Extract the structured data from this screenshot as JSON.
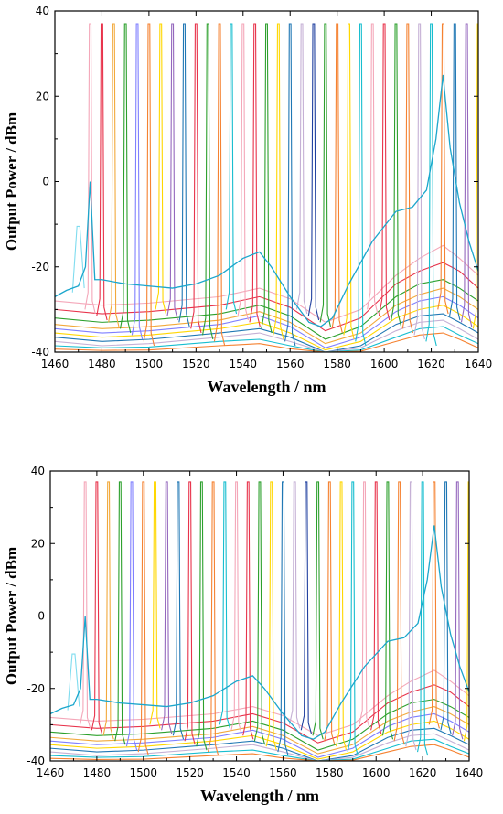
{
  "chart_data": [
    {
      "type": "line",
      "title": "",
      "xlabel": "Wavelength / nm",
      "ylabel": "Output Power / dBm",
      "xlim": [
        1460,
        1640
      ],
      "ylim": [
        -40,
        40
      ],
      "x_ticks": [
        "1460",
        "1480",
        "1500",
        "1520",
        "1540",
        "1560",
        "1580",
        "1600",
        "1620",
        "1640"
      ],
      "y_ticks": [
        "-40",
        "-20",
        "0",
        "20",
        "40"
      ],
      "grid": false,
      "legend": "none",
      "peak_top_dbm": 37,
      "laser_peaks_nm": [
        1475,
        1480,
        1485,
        1490,
        1495,
        1500,
        1505,
        1510,
        1515,
        1520,
        1525,
        1530,
        1535,
        1540,
        1545,
        1550,
        1555,
        1560,
        1565,
        1570,
        1575,
        1580,
        1585,
        1590,
        1595,
        1600,
        1605,
        1610,
        1615,
        1620,
        1625,
        1630,
        1635,
        1640
      ],
      "peak_colors": [
        "#f4a7b9",
        "#e8334b",
        "#f2a93b",
        "#2ca02c",
        "#7f7fff",
        "#f58231",
        "#ffd700",
        "#9467bd",
        "#1f77b4",
        "#e8334b",
        "#2ca02c",
        "#f58231",
        "#17becf",
        "#f4a7b9",
        "#e8334b",
        "#2ca02c",
        "#ffd700",
        "#1f77b4",
        "#c5b0d5",
        "#1f3f9f",
        "#2ca02c",
        "#f58231",
        "#ffd700",
        "#17becf",
        "#f4a7b9",
        "#e8334b",
        "#2ca02c",
        "#f58231",
        "#c5b0d5",
        "#17becf",
        "#f58231",
        "#1f77b4",
        "#9467bd",
        "#ffd700"
      ],
      "highlight_series": {
        "color": "#1ba6cc",
        "x": [
          1460,
          1465,
          1470,
          1473,
          1475,
          1477,
          1480,
          1490,
          1500,
          1510,
          1520,
          1530,
          1540,
          1547,
          1552,
          1560,
          1568,
          1573,
          1578,
          1585,
          1595,
          1605,
          1612,
          1618,
          1622,
          1625,
          1628,
          1632,
          1636,
          1640
        ],
        "y": [
          -27,
          -25.5,
          -24.5,
          -20,
          0,
          -23,
          -23,
          -24,
          -24.5,
          -25,
          -24,
          -22,
          -18,
          -16.5,
          -20,
          -27,
          -33,
          -34,
          -32,
          -24,
          -14,
          -7,
          -6,
          -2,
          10,
          25,
          8,
          -5,
          -14,
          -21
        ]
      },
      "secondary_peak": {
        "x": 1470,
        "y": -10.5,
        "color": "#7fdcef"
      },
      "background_series": [
        {
          "color": "#f4a7b9",
          "y": [
            -28,
            -29,
            -28.5,
            -27,
            -25,
            -27.5,
            -33,
            -30,
            -22,
            -18,
            -15,
            -18,
            -22
          ]
        },
        {
          "color": "#e8334b",
          "y": [
            -30,
            -31,
            -30.5,
            -29,
            -27,
            -29.5,
            -35,
            -32,
            -24,
            -21,
            -19,
            -21,
            -25
          ]
        },
        {
          "color": "#2ca02c",
          "y": [
            -32,
            -33,
            -32.5,
            -31,
            -29,
            -31.5,
            -37,
            -34,
            -27,
            -24,
            -23,
            -25,
            -28
          ]
        },
        {
          "color": "#f2a93b",
          "y": [
            -33.5,
            -34.5,
            -34,
            -32.5,
            -30.5,
            -33,
            -38,
            -35.5,
            -29,
            -26.5,
            -25,
            -27,
            -30
          ]
        },
        {
          "color": "#7f7fff",
          "y": [
            -34.5,
            -35.5,
            -35,
            -33.5,
            -31.5,
            -34,
            -39,
            -36.5,
            -30.5,
            -28,
            -27,
            -29,
            -32
          ]
        },
        {
          "color": "#ffd700",
          "y": [
            -35.5,
            -36.5,
            -36,
            -34.5,
            -33,
            -35.5,
            -39.5,
            -37.5,
            -32,
            -30,
            -29,
            -31,
            -34
          ]
        },
        {
          "color": "#1f77b4",
          "y": [
            -36.5,
            -37.5,
            -37,
            -35.5,
            -34.5,
            -36.5,
            -40,
            -38.5,
            -33.5,
            -31.5,
            -31,
            -33,
            -35.5
          ]
        },
        {
          "color": "#c5b0d5",
          "y": [
            -37.5,
            -38.5,
            -38,
            -36.5,
            -35.5,
            -37.5,
            -40,
            -39,
            -35,
            -33,
            -32.5,
            -34.5,
            -37
          ]
        },
        {
          "color": "#17becf",
          "y": [
            -38.5,
            -39,
            -38.8,
            -37.5,
            -37,
            -38.5,
            -40,
            -39.5,
            -36.5,
            -34.5,
            -34,
            -36,
            -38
          ]
        },
        {
          "color": "#f58231",
          "y": [
            -39.3,
            -39.6,
            -39.5,
            -38.5,
            -38,
            -39.2,
            -40,
            -39.8,
            -37.5,
            -36,
            -35.5,
            -37,
            -39
          ]
        }
      ],
      "background_x": [
        1460,
        1480,
        1500,
        1530,
        1547,
        1560,
        1575,
        1590,
        1605,
        1615,
        1625,
        1632,
        1640
      ]
    },
    {
      "type": "line",
      "title": "",
      "xlabel": "Wavelength / nm",
      "ylabel": "Output Power / dBm",
      "xlim": [
        1460,
        1640
      ],
      "ylim": [
        -40,
        40
      ],
      "x_ticks": [
        "1460",
        "1480",
        "1500",
        "1520",
        "1540",
        "1560",
        "1580",
        "1600",
        "1620",
        "1640"
      ],
      "y_ticks": [
        "-40",
        "-20",
        "0",
        "20",
        "40"
      ],
      "grid": false,
      "legend": "none",
      "same_data_as_first": true
    }
  ]
}
